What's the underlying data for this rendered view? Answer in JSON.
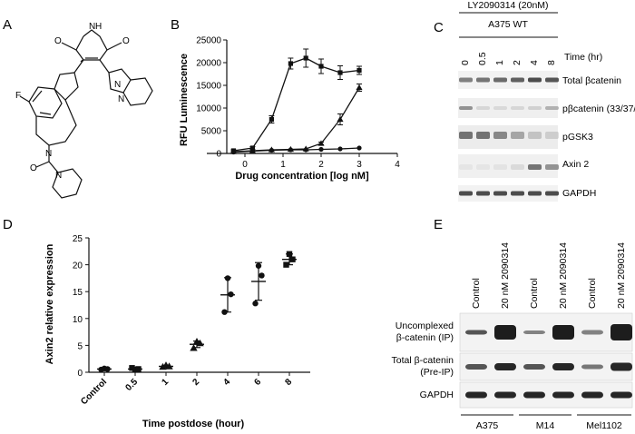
{
  "panels": {
    "A": {
      "letter": "A",
      "structure": {
        "atoms": [
          "F",
          "N",
          "N",
          "O",
          "N",
          "O",
          "N",
          "N",
          "O",
          "H"
        ]
      }
    },
    "B": {
      "letter": "B",
      "ylabel": "RFU Luminescence",
      "xlabel": "Drug concentration [log nM]",
      "y_ticks": [
        "0",
        "5000",
        "10000",
        "15000",
        "20000",
        "25000"
      ],
      "x_ticks": [
        "0",
        "1",
        "2",
        "3",
        "4"
      ]
    },
    "C": {
      "letter": "C",
      "treatment": "LY2090314 (20nM)",
      "cell_line": "A375 WT",
      "time_label": "Time (hr)",
      "lanes": [
        "0",
        "0.5",
        "1",
        "2",
        "4",
        "8"
      ],
      "bands": [
        "Total βcatenin",
        "pβcatenin (33/37/41)",
        "pGSK3",
        "Axin 2",
        "GAPDH"
      ]
    },
    "D": {
      "letter": "D",
      "ylabel": "Axin2 relative expression",
      "xlabel": "Time postdose (hour)",
      "y_ticks": [
        "0",
        "5",
        "10",
        "15",
        "20",
        "25"
      ],
      "categories": [
        "Control",
        "0.5",
        "1",
        "2",
        "4",
        "6",
        "8"
      ]
    },
    "E": {
      "letter": "E",
      "lane_labels": [
        "Control",
        "20 nM 2090314",
        "Control",
        "20 nM 2090314",
        "Control",
        "20 nM 2090314"
      ],
      "rows": [
        {
          "line1": "Uncomplexed",
          "line2": "β-catenin (IP)"
        },
        {
          "line1": "Total β-catenin",
          "line2": "(Pre-IP)"
        },
        {
          "line1": "GAPDH",
          "line2": ""
        }
      ],
      "cell_lines": [
        "A375",
        "M14",
        "Mel1102"
      ]
    }
  },
  "chart_data": [
    {
      "type": "line",
      "panel": "B",
      "xlabel": "Drug concentration [log nM]",
      "ylabel": "RFU Luminescence",
      "xlim": [
        -1,
        4
      ],
      "ylim": [
        0,
        25000
      ],
      "grid": false,
      "series": [
        {
          "x": [
            -0.3,
            0.2,
            0.7,
            1.2,
            1.6,
            2.0,
            2.5,
            3.0
          ],
          "y": [
            600,
            1200,
            7500,
            19800,
            21000,
            19200,
            17800,
            18300
          ],
          "err": [
            200,
            300,
            800,
            1200,
            2000,
            1600,
            1500,
            900
          ],
          "marker": "square"
        },
        {
          "x": [
            -0.3,
            0.2,
            0.7,
            1.2,
            1.6,
            2.0,
            2.5,
            3.0
          ],
          "y": [
            400,
            600,
            800,
            900,
            1000,
            2200,
            7500,
            14500
          ],
          "err": [
            100,
            100,
            100,
            100,
            100,
            300,
            1200,
            800
          ],
          "marker": "triangle"
        },
        {
          "x": [
            -0.3,
            0.2,
            0.7,
            1.2,
            1.6,
            2.0,
            2.5,
            3.0
          ],
          "y": [
            300,
            500,
            700,
            800,
            800,
            900,
            1000,
            1200
          ],
          "err": [
            50,
            50,
            50,
            50,
            50,
            50,
            50,
            50
          ],
          "marker": "circle"
        }
      ]
    },
    {
      "type": "scatter",
      "panel": "D",
      "xlabel": "Time postdose (hour)",
      "ylabel": "Axin2 relative expression",
      "categories": [
        "Control",
        "0.5",
        "1",
        "2",
        "4",
        "6",
        "8"
      ],
      "ylim": [
        0,
        25
      ],
      "points": [
        [
          0.5,
          0.7,
          0.6
        ],
        [
          0.8,
          0.5,
          0.6
        ],
        [
          1.0,
          1.3,
          1.1
        ],
        [
          4.5,
          5.7,
          5.4
        ],
        [
          11.2,
          17.5,
          14.5
        ],
        [
          12.8,
          19.8,
          18.0
        ],
        [
          20.0,
          22.0,
          21.0
        ]
      ],
      "means": [
        0.6,
        0.6,
        1.1,
        5.2,
        14.4,
        16.9,
        21.0
      ],
      "sd": [
        0.1,
        0.15,
        0.15,
        0.6,
        3.2,
        3.5,
        1.0
      ],
      "markers": [
        "circle",
        "square",
        "triangle",
        "triangle",
        "circle",
        "circle",
        "square"
      ]
    }
  ]
}
